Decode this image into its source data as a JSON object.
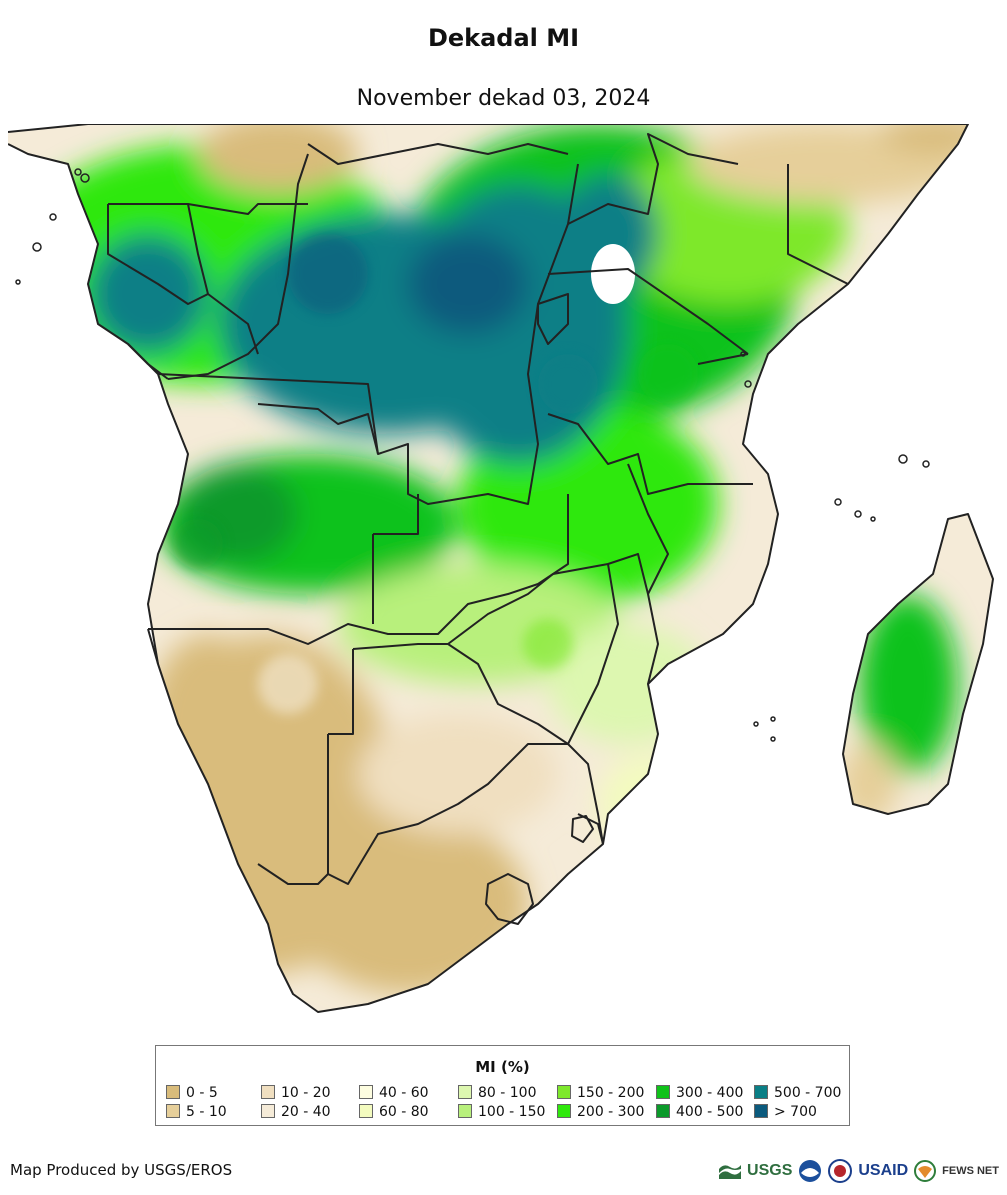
{
  "title": "Dekadal MI",
  "subtitle": "November dekad 03, 2024",
  "legend": {
    "title": "MI (%)",
    "classes": [
      {
        "label": "0 - 5",
        "color": "#d9bc7b"
      },
      {
        "label": "5 - 10",
        "color": "#e6cf9a"
      },
      {
        "label": "10 - 20",
        "color": "#f0dfc0"
      },
      {
        "label": "20 - 40",
        "color": "#f5ebd8"
      },
      {
        "label": "40 - 60",
        "color": "#fdfde0"
      },
      {
        "label": "60 - 80",
        "color": "#f3fbbf"
      },
      {
        "label": "80 - 100",
        "color": "#ddf7b0"
      },
      {
        "label": "100 - 150",
        "color": "#b8f07c"
      },
      {
        "label": "150 - 200",
        "color": "#7ee82c"
      },
      {
        "label": "200 - 300",
        "color": "#2fe80c"
      },
      {
        "label": "300 - 400",
        "color": "#10c21a"
      },
      {
        "label": "400 - 500",
        "color": "#0b9a2a"
      },
      {
        "label": "500 - 700",
        "color": "#0a7f86"
      },
      {
        "label": "> 700",
        "color": "#0b5a7d"
      }
    ]
  },
  "credit": "Map Produced by USGS/EROS",
  "logos": {
    "usgs": "USGS",
    "usaid": "USAID",
    "fewsnet": "FEWS NET",
    "usgs_icon": "usgs-logo",
    "noaa_icon": "noaa-logo",
    "globe_icon": "globe-logo"
  }
}
